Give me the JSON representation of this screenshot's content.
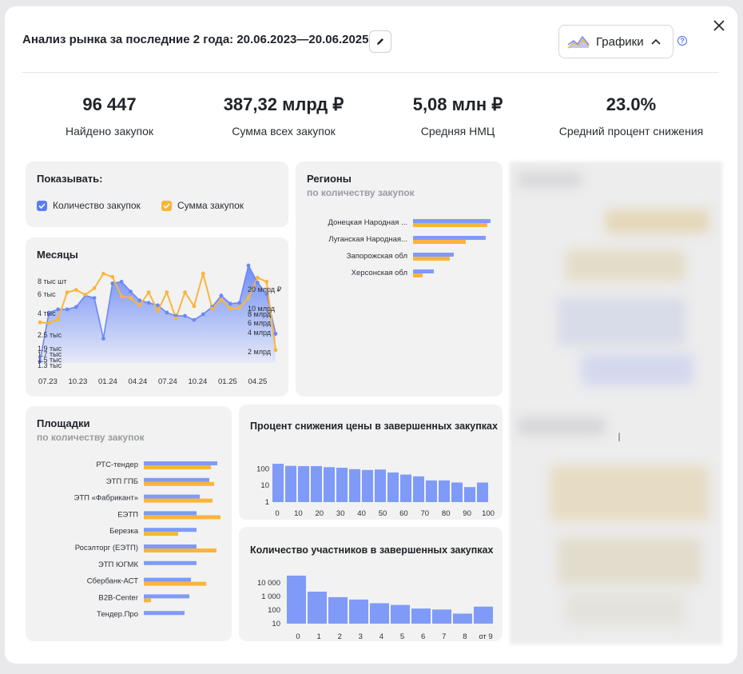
{
  "header": {
    "title": "Анализ рынка за последние 2 года: 20.06.2023—20.06.2025",
    "charts_button_label": "Графики",
    "help_symbol": "?"
  },
  "stats": [
    {
      "value": "96 447",
      "label": "Найдено закупок"
    },
    {
      "value": "387,32 млрд ₽",
      "label": "Сумма всех закупок"
    },
    {
      "value": "5,08 млн ₽",
      "label": "Средняя НМЦ"
    },
    {
      "value": "23.0%",
      "label": "Средний процент снижения"
    }
  ],
  "show_panel": {
    "title": "Показывать:",
    "options": [
      {
        "label": "Количество закупок",
        "checked": true,
        "color": "#5b7cf6"
      },
      {
        "label": "Сумма закупок",
        "checked": true,
        "color": "#f7b733"
      }
    ]
  },
  "colors": {
    "count": "#7f9bf7",
    "sum": "#f9b53b",
    "count_line": "#6c87f4"
  },
  "months_chart": {
    "title": "Месяцы",
    "chart_data": {
      "type": "line",
      "x_ticks": [
        "07.23",
        "10.23",
        "01.24",
        "04.24",
        "07.24",
        "10.24",
        "01.25",
        "04.25"
      ],
      "left_ticks": [
        "8 тыс шт",
        "6 тыс",
        "4 тыс",
        "2.5 тыс",
        "1.9 тыс",
        "1.7 тыс",
        "1.5 тыс",
        "1.3 тыс"
      ],
      "right_ticks": [
        "20 млрд ₽",
        "10 млрд",
        "8 млрд",
        "6 млрд",
        "4 млрд",
        "2 млрд"
      ],
      "series": [
        {
          "name": "Количество закупок",
          "values": [
            0.02,
            0.62,
            0.66,
            0.66,
            0.69,
            0.83,
            0.8,
            0.3,
            0.98,
            1.0,
            0.88,
            0.77,
            0.74,
            0.71,
            0.62,
            0.58,
            0.58,
            0.53,
            0.6,
            0.69,
            0.83,
            0.73,
            0.74,
            1.2,
            0.99,
            0.85,
            0.36
          ]
        },
        {
          "name": "Сумма закупок",
          "values": [
            0.5,
            0.49,
            0.54,
            0.87,
            0.9,
            0.84,
            0.92,
            1.1,
            1.06,
            0.82,
            0.8,
            0.71,
            0.87,
            0.64,
            0.87,
            0.55,
            0.87,
            0.7,
            1.1,
            0.67,
            0.78,
            0.67,
            0.68,
            0.8,
            1.05,
            1.0,
            0.16
          ]
        }
      ]
    }
  },
  "regions_chart": {
    "title": "Регионы",
    "subtitle": "по количеству закупок",
    "chart_data": {
      "type": "bar",
      "categories": [
        "Донецкая Народная ...",
        "Луганская Народная...",
        "Запорожская обл",
        "Херсонская обл"
      ],
      "series": [
        {
          "name": "Количество закупок",
          "values": [
            97,
            91,
            51,
            26
          ]
        },
        {
          "name": "Сумма закупок",
          "values": [
            93,
            66,
            46,
            12
          ]
        }
      ]
    }
  },
  "platforms_chart": {
    "title": "Площадки",
    "subtitle": "по количеству закупок",
    "chart_data": {
      "type": "bar",
      "categories": [
        "РТС-тендер",
        "ЭТП ГПБ",
        "ЭТП «Фабрикант»",
        "ЕЭТП",
        "Березка",
        "Росэлторг (ЕЭТП)",
        "ЭТП ЮГМК",
        "Сбербанк-АСТ",
        "B2B-Center",
        "Тендер.Про"
      ],
      "series": [
        {
          "name": "Количество закупок",
          "values": [
            92,
            82,
            70,
            66,
            66,
            66,
            66,
            59,
            57,
            51
          ]
        },
        {
          "name": "Сумма закупок",
          "values": [
            84,
            88,
            86,
            96,
            43,
            91,
            0,
            78,
            9,
            0
          ]
        }
      ]
    }
  },
  "discount_chart": {
    "title": "Процент снижения цены в завершенных закупках",
    "chart_data": {
      "type": "bar",
      "x_ticks": [
        "0",
        "10",
        "20",
        "30",
        "40",
        "50",
        "60",
        "70",
        "80",
        "90",
        "100"
      ],
      "y_ticks": [
        "100",
        "10",
        "1"
      ],
      "y_scale": "log",
      "values": [
        200,
        150,
        145,
        145,
        125,
        115,
        95,
        85,
        90,
        60,
        45,
        35,
        20,
        20,
        15,
        8,
        15
      ]
    }
  },
  "participants_chart": {
    "title": "Количество участников в завершенных закупках",
    "chart_data": {
      "type": "bar",
      "categories": [
        "0",
        "1",
        "2",
        "3",
        "4",
        "5",
        "6",
        "7",
        "8",
        "от 9"
      ],
      "y_ticks": [
        "10 000",
        "1 000",
        "100",
        "10"
      ],
      "y_scale": "log",
      "values": [
        35000,
        2300,
        900,
        600,
        320,
        240,
        130,
        110,
        55,
        180
      ]
    }
  }
}
